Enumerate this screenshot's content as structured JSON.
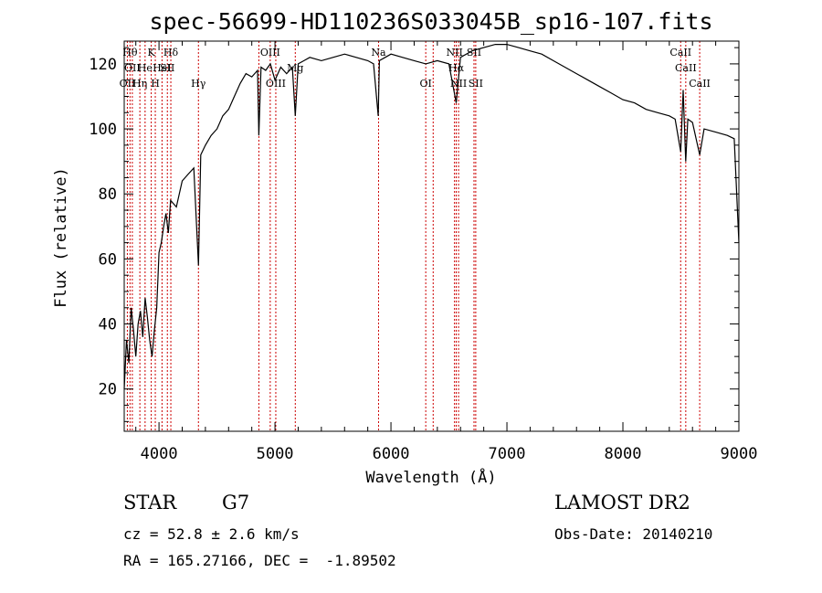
{
  "chart_data": {
    "type": "line",
    "title": "spec-56699-HD110236S033045B_sp16-107.fits",
    "xlabel": "Wavelength (Å)",
    "ylabel": "Flux (relative)",
    "xlim": [
      3700,
      9000
    ],
    "ylim": [
      7,
      127
    ],
    "xticks": [
      4000,
      5000,
      6000,
      7000,
      8000,
      9000
    ],
    "yticks": [
      20,
      40,
      60,
      80,
      100,
      120
    ],
    "grid": false,
    "series": [
      {
        "color": "#000000",
        "x": [
          3700,
          3720,
          3740,
          3760,
          3780,
          3800,
          3820,
          3840,
          3860,
          3880,
          3900,
          3920,
          3940,
          3960,
          3980,
          4000,
          4020,
          4040,
          4060,
          4080,
          4100,
          4150,
          4200,
          4250,
          4300,
          4340,
          4360,
          4400,
          4450,
          4500,
          4550,
          4600,
          4650,
          4700,
          4750,
          4800,
          4850,
          4861,
          4880,
          4920,
          4960,
          5000,
          5050,
          5100,
          5150,
          5175,
          5200,
          5250,
          5300,
          5400,
          5500,
          5600,
          5700,
          5800,
          5850,
          5890,
          5900,
          5950,
          6000,
          6100,
          6200,
          6300,
          6400,
          6500,
          6563,
          6600,
          6700,
          6800,
          6900,
          7000,
          7100,
          7200,
          7300,
          7400,
          7500,
          7600,
          7700,
          7800,
          7900,
          8000,
          8100,
          8200,
          8300,
          8400,
          8450,
          8498,
          8520,
          8542,
          8560,
          8600,
          8662,
          8700,
          8800,
          8900,
          8960,
          9000
        ],
        "y": [
          20,
          35,
          28,
          45,
          38,
          30,
          40,
          44,
          36,
          48,
          42,
          35,
          30,
          38,
          45,
          62,
          65,
          70,
          74,
          68,
          78,
          76,
          84,
          86,
          88,
          58,
          92,
          95,
          98,
          100,
          104,
          106,
          110,
          114,
          117,
          116,
          118,
          98,
          119,
          118,
          120,
          115,
          119,
          117,
          119,
          104,
          120,
          121,
          122,
          121,
          122,
          123,
          122,
          121,
          120,
          104,
          121,
          122,
          123,
          122,
          121,
          120,
          121,
          120,
          108,
          122,
          124,
          125,
          126,
          126,
          125,
          124,
          123,
          121,
          119,
          117,
          115,
          113,
          111,
          109,
          108,
          106,
          105,
          104,
          103,
          93,
          112,
          90,
          103,
          102,
          92,
          100,
          99,
          98,
          97,
          65
        ]
      }
    ],
    "line_markers": [
      {
        "wavelength": 3727,
        "label": "OII",
        "row": 2
      },
      {
        "wavelength": 3750,
        "label": "Hθ",
        "row": 0
      },
      {
        "wavelength": 3770,
        "label": "OII",
        "row": 1
      },
      {
        "wavelength": 3835,
        "label": "Hη",
        "row": 2
      },
      {
        "wavelength": 3880,
        "label": "He",
        "row": 1
      },
      {
        "wavelength": 3933,
        "label": "K",
        "row": 0
      },
      {
        "wavelength": 3968,
        "label": "H",
        "row": 2
      },
      {
        "wavelength": 4026,
        "label": "HeI",
        "row": 1
      },
      {
        "wavelength": 4072,
        "label": "SII",
        "row": 1
      },
      {
        "wavelength": 4102,
        "label": "Hδ",
        "row": 0
      },
      {
        "wavelength": 4340,
        "label": "Hγ",
        "row": 2
      },
      {
        "wavelength": 4861,
        "label": "",
        "row": 0
      },
      {
        "wavelength": 4959,
        "label": "OIII",
        "row": 0
      },
      {
        "wavelength": 5007,
        "label": "OIII",
        "row": 2
      },
      {
        "wavelength": 5175,
        "label": "Mg",
        "row": 1
      },
      {
        "wavelength": 5893,
        "label": "Na",
        "row": 0
      },
      {
        "wavelength": 6300,
        "label": "OI",
        "row": 2
      },
      {
        "wavelength": 6364,
        "label": "",
        "row": 0
      },
      {
        "wavelength": 6548,
        "label": "NII",
        "row": 0
      },
      {
        "wavelength": 6563,
        "label": "Hα",
        "row": 1
      },
      {
        "wavelength": 6583,
        "label": "NII",
        "row": 2
      },
      {
        "wavelength": 6716,
        "label": "SII",
        "row": 0
      },
      {
        "wavelength": 6731,
        "label": "SII",
        "row": 2
      },
      {
        "wavelength": 8498,
        "label": "CaII",
        "row": 0
      },
      {
        "wavelength": 8542,
        "label": "CaII",
        "row": 1
      },
      {
        "wavelength": 8662,
        "label": "CaII",
        "row": 2
      }
    ]
  },
  "info": {
    "class": "STAR",
    "subclass": "G7",
    "survey": "LAMOST DR2",
    "cz": "cz = 52.8 ± 2.6 km/s",
    "obs_date": "Obs-Date: 20140210",
    "coords": "RA = 165.27166, DEC =  -1.89502"
  },
  "colors": {
    "spectrum": "#000000",
    "marker": "#cc0000"
  }
}
